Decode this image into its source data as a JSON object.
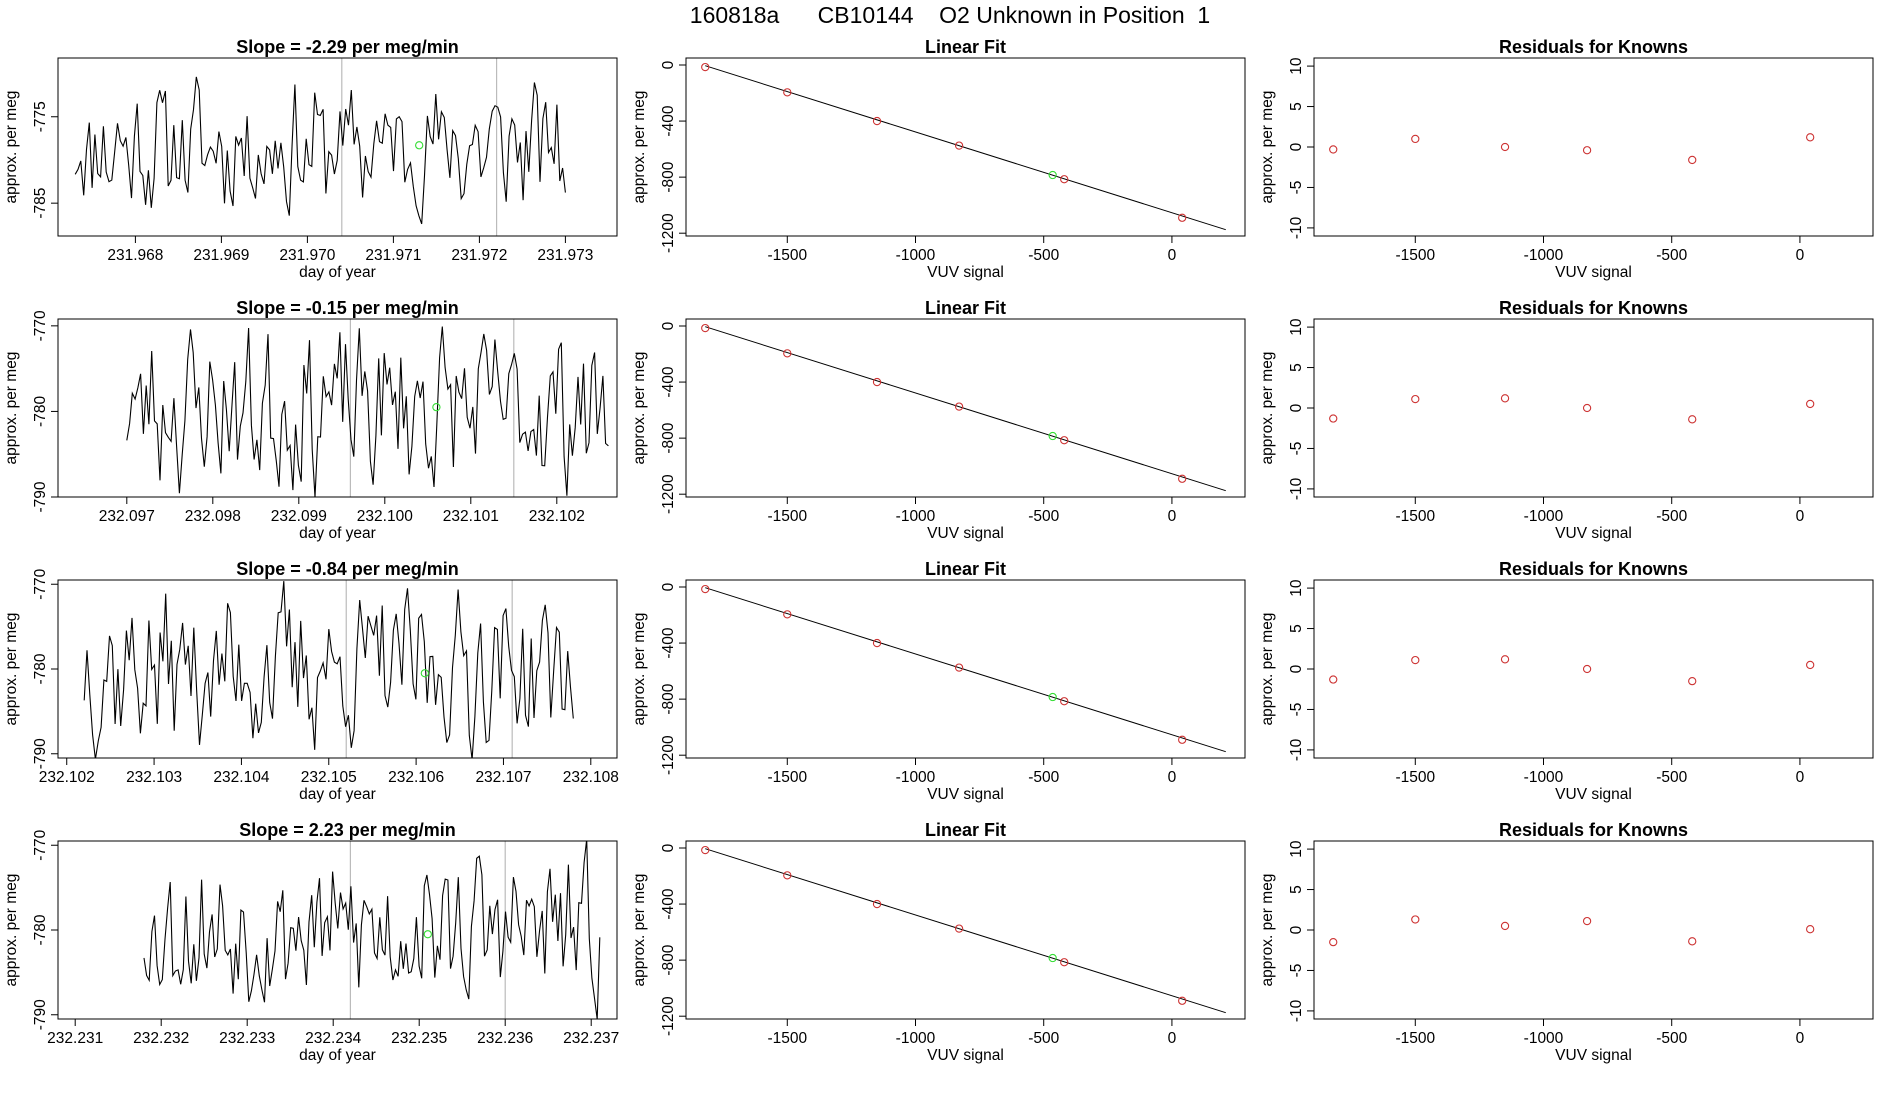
{
  "figure": {
    "title": "160818a      CB10144    O2 Unknown in Position  1",
    "colors": {
      "line": "#000000",
      "frame": "#000000",
      "point": "#cd3333",
      "highlight": "#33dd33",
      "vline": "#bbbbbb"
    }
  },
  "chart_data": [
    {
      "row": 1,
      "timeseries": {
        "type": "line",
        "title_prefix": "Slope = ",
        "slope": "-2.29",
        "title_suffix": " per meg/min",
        "xlabel": "day of year",
        "ylabel": "approx. per meg",
        "xlim": [
          231.9671,
          231.9736
        ],
        "ylim": [
          -788.8,
          -768.2
        ],
        "xticks": [
          "231.968",
          "231.969",
          "231.970",
          "231.971",
          "231.972",
          "231.973"
        ],
        "yticks": [
          "-775",
          "-785"
        ],
        "x_start": 231.9673,
        "x_end": 231.973,
        "noise_amp": 4.5,
        "seed": 11,
        "markers": [
          231.9704,
          231.9722
        ],
        "highlight_point": {
          "x": 231.9713,
          "y": -778.3
        }
      },
      "linear_fit": {
        "type": "scatter",
        "title": "Linear Fit",
        "xlabel": "VUV signal",
        "ylabel": "approx. per meg",
        "xlim": [
          -1895,
          285
        ],
        "ylim": [
          -1220,
          50
        ],
        "xticks": [
          "-1500",
          "-1000",
          "-500",
          "0"
        ],
        "yticks": [
          "0",
          "-400",
          "-800",
          "-1200"
        ],
        "points_x": [
          -1820,
          -1500,
          -1150,
          -830,
          -420,
          40
        ],
        "points_y": [
          -15,
          -195,
          -400,
          -575,
          -815,
          -1090
        ],
        "fit_line": {
          "x": [
            -1820,
            210
          ],
          "y": [
            -5,
            -1175
          ]
        },
        "unknown_point": {
          "x": -465,
          "y": -785
        }
      },
      "residuals": {
        "type": "scatter",
        "title": "Residuals for Knowns",
        "xlabel": "VUV signal",
        "xlim": [
          -1895,
          285
        ],
        "ylim": [
          -11,
          11
        ],
        "xticks": [
          "-1500",
          "-1000",
          "-500",
          "0"
        ],
        "yticks": [
          "10",
          "5",
          "0",
          "-5",
          "-10"
        ],
        "points_x": [
          -1820,
          -1500,
          -1150,
          -830,
          -420,
          40
        ],
        "points_y": [
          -0.3,
          1.0,
          0.0,
          -0.4,
          -1.6,
          1.2
        ]
      }
    },
    {
      "row": 2,
      "timeseries": {
        "type": "line",
        "title_prefix": "Slope = ",
        "slope": "-0.15",
        "title_suffix": " per meg/min",
        "xlabel": "day of year",
        "ylabel": "approx. per meg",
        "xlim": [
          232.0962,
          232.1027
        ],
        "ylim": [
          -790,
          -769.2
        ],
        "xticks": [
          "232.097",
          "232.098",
          "232.099",
          "232.100",
          "232.101",
          "232.102"
        ],
        "yticks": [
          "-770",
          "-780",
          "-790"
        ],
        "x_start": 232.097,
        "x_end": 232.1026,
        "noise_amp": 5.5,
        "seed": 23,
        "markers": [
          232.0996,
          232.1015
        ],
        "highlight_point": {
          "x": 232.1006,
          "y": -779.5
        }
      },
      "linear_fit": {
        "type": "scatter",
        "title": "Linear Fit",
        "xlabel": "VUV signal",
        "ylabel": "approx. per meg",
        "xlim": [
          -1895,
          285
        ],
        "ylim": [
          -1220,
          50
        ],
        "xticks": [
          "-1500",
          "-1000",
          "-500",
          "0"
        ],
        "yticks": [
          "0",
          "-400",
          "-800",
          "-1200"
        ],
        "points_x": [
          -1820,
          -1500,
          -1150,
          -830,
          -420,
          40
        ],
        "points_y": [
          -15,
          -195,
          -400,
          -575,
          -815,
          -1090
        ],
        "fit_line": {
          "x": [
            -1820,
            210
          ],
          "y": [
            -5,
            -1175
          ]
        },
        "unknown_point": {
          "x": -465,
          "y": -785
        }
      },
      "residuals": {
        "type": "scatter",
        "title": "Residuals for Knowns",
        "xlabel": "VUV signal",
        "xlim": [
          -1895,
          285
        ],
        "ylim": [
          -11,
          11
        ],
        "xticks": [
          "-1500",
          "-1000",
          "-500",
          "0"
        ],
        "yticks": [
          "10",
          "5",
          "0",
          "-5",
          "-10"
        ],
        "points_x": [
          -1820,
          -1500,
          -1150,
          -830,
          -420,
          40
        ],
        "points_y": [
          -1.3,
          1.1,
          1.2,
          0.0,
          -1.4,
          0.5
        ]
      }
    },
    {
      "row": 3,
      "timeseries": {
        "type": "line",
        "title_prefix": "Slope = ",
        "slope": "-0.84",
        "title_suffix": " per meg/min",
        "xlabel": "day of year",
        "ylabel": "approx. per meg",
        "xlim": [
          232.1019,
          232.1083
        ],
        "ylim": [
          -790.5,
          -769.5
        ],
        "xticks": [
          "232.102",
          "232.103",
          "232.104",
          "232.105",
          "232.106",
          "232.107",
          "232.108"
        ],
        "yticks": [
          "-770",
          "-780",
          "-790"
        ],
        "x_start": 232.1022,
        "x_end": 232.1078,
        "noise_amp": 5.5,
        "seed": 37,
        "markers": [
          232.1052,
          232.1071
        ],
        "highlight_point": {
          "x": 232.1061,
          "y": -780.5
        }
      },
      "linear_fit": {
        "type": "scatter",
        "title": "Linear Fit",
        "xlabel": "VUV signal",
        "ylabel": "approx. per meg",
        "xlim": [
          -1895,
          285
        ],
        "ylim": [
          -1220,
          50
        ],
        "xticks": [
          "-1500",
          "-1000",
          "-500",
          "0"
        ],
        "yticks": [
          "0",
          "-400",
          "-800",
          "-1200"
        ],
        "points_x": [
          -1820,
          -1500,
          -1150,
          -830,
          -420,
          40
        ],
        "points_y": [
          -15,
          -195,
          -400,
          -575,
          -815,
          -1090
        ],
        "fit_line": {
          "x": [
            -1820,
            210
          ],
          "y": [
            -5,
            -1175
          ]
        },
        "unknown_point": {
          "x": -465,
          "y": -785
        }
      },
      "residuals": {
        "type": "scatter",
        "title": "Residuals for Knowns",
        "xlabel": "VUV signal",
        "xlim": [
          -1895,
          285
        ],
        "ylim": [
          -11,
          11
        ],
        "xticks": [
          "-1500",
          "-1000",
          "-500",
          "0"
        ],
        "yticks": [
          "10",
          "5",
          "0",
          "-5",
          "-10"
        ],
        "points_x": [
          -1820,
          -1500,
          -1150,
          -830,
          -420,
          40
        ],
        "points_y": [
          -1.3,
          1.1,
          1.2,
          0.0,
          -1.5,
          0.5
        ]
      }
    },
    {
      "row": 4,
      "timeseries": {
        "type": "line",
        "title_prefix": "Slope = ",
        "slope": "2.23",
        "title_suffix": " per meg/min",
        "xlabel": "day of year",
        "ylabel": "approx. per meg",
        "xlim": [
          232.2308,
          232.2373
        ],
        "ylim": [
          -790.5,
          -769.5
        ],
        "xticks": [
          "232.231",
          "232.232",
          "232.233",
          "232.234",
          "232.235",
          "232.236",
          "232.237"
        ],
        "yticks": [
          "-770",
          "-780",
          "-790"
        ],
        "x_start": 232.2318,
        "x_end": 232.2371,
        "noise_amp": 5.0,
        "seed": 53,
        "markers": [
          232.2342,
          232.236
        ],
        "highlight_point": {
          "x": 232.2351,
          "y": -780.5
        }
      },
      "linear_fit": {
        "type": "scatter",
        "title": "Linear Fit",
        "xlabel": "VUV signal",
        "ylabel": "approx. per meg",
        "xlim": [
          -1895,
          285
        ],
        "ylim": [
          -1220,
          50
        ],
        "xticks": [
          "-1500",
          "-1000",
          "-500",
          "0"
        ],
        "yticks": [
          "0",
          "-400",
          "-800",
          "-1200"
        ],
        "points_x": [
          -1820,
          -1500,
          -1150,
          -830,
          -420,
          40
        ],
        "points_y": [
          -15,
          -195,
          -400,
          -575,
          -815,
          -1090
        ],
        "fit_line": {
          "x": [
            -1820,
            210
          ],
          "y": [
            -5,
            -1175
          ]
        },
        "unknown_point": {
          "x": -465,
          "y": -785
        }
      },
      "residuals": {
        "type": "scatter",
        "title": "Residuals for Knowns",
        "xlabel": "VUV signal",
        "xlim": [
          -1895,
          285
        ],
        "ylim": [
          -11,
          11
        ],
        "xticks": [
          "-1500",
          "-1000",
          "-500",
          "0"
        ],
        "yticks": [
          "10",
          "5",
          "0",
          "-5",
          "-10"
        ],
        "points_x": [
          -1820,
          -1500,
          -1150,
          -830,
          -420,
          40
        ],
        "points_y": [
          -1.5,
          1.3,
          0.5,
          1.1,
          -1.4,
          0.1
        ]
      }
    }
  ]
}
